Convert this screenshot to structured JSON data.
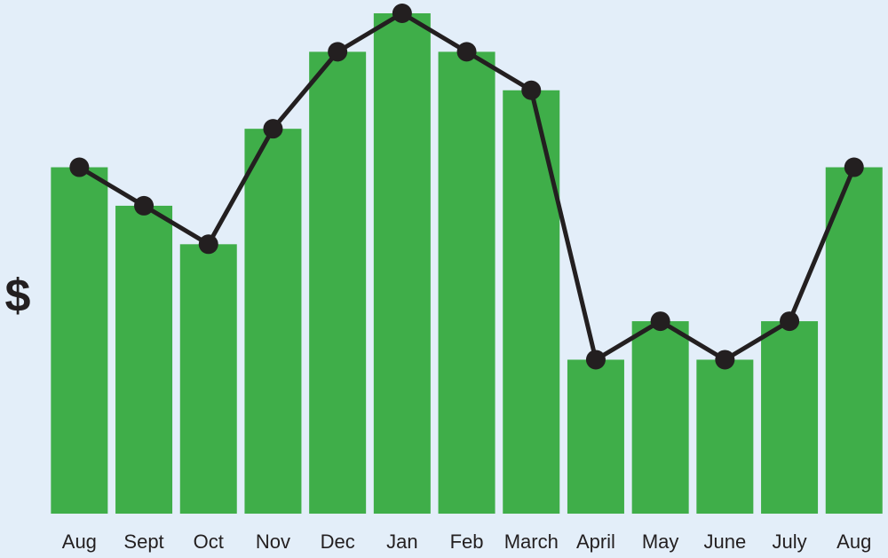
{
  "chart_data": {
    "type": "bar",
    "y_label": "$",
    "categories": [
      "Aug",
      "Sept",
      "Oct",
      "Nov",
      "Dec",
      "Jan",
      "Feb",
      "March",
      "April",
      "May",
      "June",
      "July",
      "Aug"
    ],
    "series": [
      {
        "type": "bar",
        "color": "#3fae49",
        "values": [
          9,
          8,
          7,
          10,
          12,
          13,
          12,
          11,
          4,
          5,
          4,
          5,
          9
        ]
      },
      {
        "type": "line",
        "color": "#231f20",
        "values": [
          9,
          8,
          7,
          10,
          12,
          13,
          12,
          11,
          4,
          5,
          4,
          5,
          9
        ]
      }
    ],
    "ylim": [
      0,
      13
    ]
  }
}
